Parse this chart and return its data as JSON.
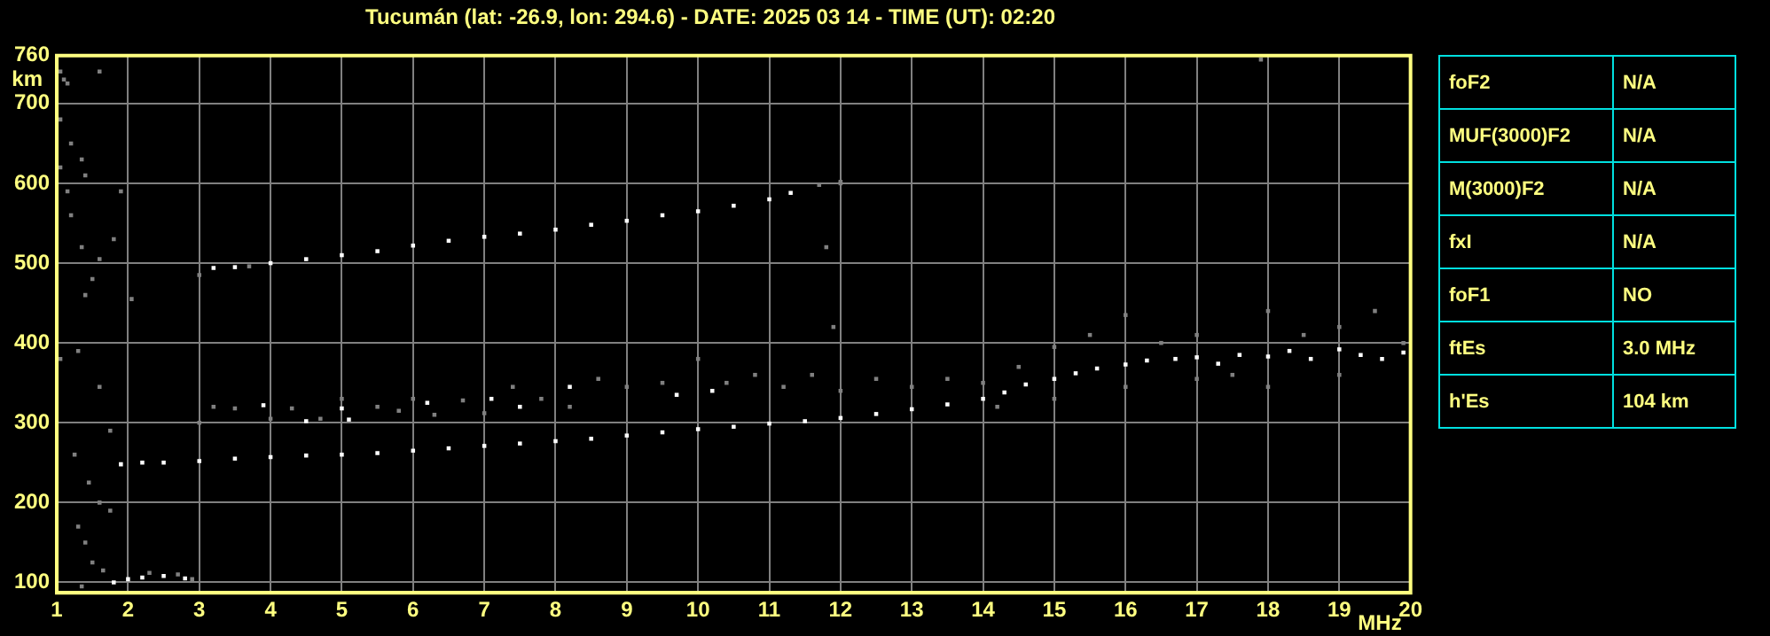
{
  "chart_data": [
    {
      "type": "scatter",
      "title": "Tucumán (lat: -26.9, lon: 294.6) - DATE: 2025 03 14 - TIME (UT): 02:20",
      "xlabel": "MHz",
      "ylabel": "km",
      "xlim": [
        1,
        20
      ],
      "xticks": [
        1,
        2,
        3,
        4,
        5,
        6,
        7,
        8,
        9,
        10,
        11,
        12,
        13,
        14,
        15,
        16,
        17,
        18,
        19,
        20
      ],
      "ylim": [
        87,
        760
      ],
      "yticks": [
        100,
        200,
        300,
        400,
        500,
        600,
        700,
        760
      ],
      "grid": true,
      "legend": false,
      "marker": "square",
      "series": [
        {
          "color": "#ffffff",
          "x": [
            1.8,
            2.0,
            2.2,
            2.5,
            2.8,
            1.9,
            2.2,
            2.5,
            3,
            3.5,
            4,
            4.5,
            5,
            5.5,
            6,
            6.5,
            7,
            7.5,
            8,
            8.5,
            9,
            9.5,
            10,
            10.5,
            11,
            11.5,
            12,
            12.5,
            13,
            13.5,
            14,
            14.3,
            14.6,
            15,
            15.3,
            15.6,
            16,
            16.3,
            16.7,
            17,
            17.3,
            17.6,
            18,
            18.3,
            18.6,
            19,
            19.3,
            19.6,
            19.9,
            3.2,
            3.5,
            4,
            4.5,
            5,
            5.5,
            6,
            6.5,
            7,
            7.5,
            8,
            8.5,
            9,
            9.5,
            10,
            10.5,
            11,
            11.3,
            3.9,
            4.5,
            5,
            5.1,
            6.2,
            7.1,
            7.5,
            8.2,
            9.7,
            10.2
          ],
          "values": [
            100,
            104,
            106,
            108,
            105,
            248,
            250,
            250,
            252,
            255,
            257,
            259,
            260,
            262,
            265,
            268,
            271,
            274,
            277,
            280,
            284,
            288,
            292,
            295,
            299,
            302,
            306,
            311,
            317,
            323,
            330,
            338,
            348,
            355,
            362,
            368,
            373,
            378,
            380,
            382,
            374,
            385,
            383,
            390,
            380,
            392,
            385,
            380,
            388,
            494,
            495,
            500,
            505,
            510,
            515,
            522,
            528,
            533,
            537,
            542,
            548,
            553,
            560,
            565,
            572,
            580,
            588,
            322,
            302,
            318,
            304,
            325,
            330,
            320,
            345,
            335,
            340
          ]
        },
        {
          "color": "#808080",
          "x": [
            1.05,
            1.1,
            1.15,
            1.05,
            1.2,
            1.35,
            1.4,
            1.6,
            1.05,
            1.15,
            1.2,
            1.35,
            1.5,
            1.4,
            1.6,
            1.8,
            1.9,
            2.05,
            1.05,
            1.3,
            1.6,
            1.75,
            1.25,
            1.45,
            1.3,
            1.5,
            1.65,
            1.75,
            1.4,
            1.6,
            1.35,
            3,
            3.2,
            3.5,
            4,
            4.3,
            4.7,
            5,
            5.5,
            5.8,
            6,
            6.3,
            6.7,
            7,
            7.4,
            7.8,
            8.2,
            8.6,
            9,
            9.5,
            10,
            10.4,
            10.8,
            11.2,
            11.6,
            11.9,
            12,
            12.5,
            13,
            13.5,
            14,
            14.5,
            15,
            15.5,
            16,
            16.5,
            17,
            17.5,
            18,
            18.5,
            19,
            19.5,
            19.9,
            15,
            16,
            17,
            18,
            19,
            14.2,
            17.9,
            11.8,
            12,
            2.3,
            2.7,
            2.9,
            3,
            3.7,
            11.7,
            12
          ],
          "values": [
            740,
            730,
            725,
            680,
            650,
            630,
            610,
            740,
            620,
            590,
            560,
            520,
            480,
            460,
            505,
            530,
            590,
            455,
            380,
            390,
            345,
            290,
            260,
            225,
            170,
            125,
            115,
            190,
            150,
            200,
            95,
            300,
            320,
            318,
            305,
            318,
            305,
            330,
            320,
            315,
            330,
            310,
            328,
            312,
            345,
            330,
            320,
            355,
            345,
            350,
            380,
            350,
            360,
            345,
            360,
            420,
            340,
            355,
            345,
            355,
            350,
            370,
            395,
            410,
            435,
            400,
            410,
            360,
            440,
            410,
            420,
            440,
            400,
            330,
            345,
            355,
            345,
            360,
            320,
            755,
            520,
            600,
            112,
            110,
            104,
            485,
            496,
            598,
            602
          ]
        }
      ]
    },
    {
      "type": "other",
      "annotations": [
        "foF2",
        "N/A",
        "MUF(3000)F2",
        "N/A",
        "M(3000)F2",
        "N/A",
        "fxI",
        "N/A",
        "foF1",
        "NO",
        "ftEs",
        "3.0 MHz",
        "h'Es",
        "104 km"
      ]
    }
  ]
}
